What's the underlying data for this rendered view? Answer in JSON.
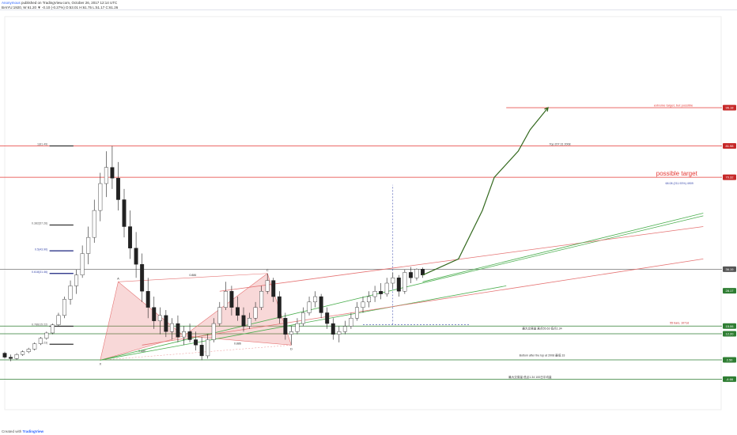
{
  "header": {
    "author": "Anonymous",
    "published": "published on TradingView.com, October 26, 2017 12:14 UTC",
    "symbol_line": "BAIYU:1920, W  61.20 ▼ -0.10 (-0.27%)  O:53.01  H:61.75  L:51.17  C:61.26"
  },
  "footer": {
    "created_with": "Created with",
    "brand": "TradingView"
  },
  "chart_data": {
    "type": "candlestick",
    "title": "",
    "xlabel": "",
    "ylabel": "",
    "ylim": [
      -16,
      130
    ],
    "price_scale_badges": [
      {
        "label": "96.18",
        "value": 96.18,
        "color": "#c62828"
      },
      {
        "label": "81.98",
        "value": 81.98,
        "color": "#c62828"
      },
      {
        "label": "70.32",
        "value": 70.32,
        "color": "#c62828"
      },
      {
        "label": "36.19",
        "value": 36.19,
        "color": "#555555"
      },
      {
        "label": "28.17",
        "value": 28.17,
        "color": "#2e7d32"
      },
      {
        "label": "15.06",
        "value": 15.06,
        "color": "#2e7d32"
      },
      {
        "label": "12.20",
        "value": 12.2,
        "color": "#2e7d32"
      },
      {
        "label": "2.50",
        "value": 2.5,
        "color": "#2e7d32"
      },
      {
        "label": "-4.66",
        "value": -4.66,
        "color": "#2e7d32"
      }
    ],
    "horizontal_levels": [
      {
        "value": 96.18,
        "label": "extreme target, but possible",
        "color": "#e53935"
      },
      {
        "value": 81.98,
        "label": "Top 207.31 2008",
        "color": "#e53935"
      },
      {
        "value": 70.32,
        "label": "possible target",
        "color": "#e53935"
      },
      {
        "value": 36.19,
        "label": "",
        "color": "#757575"
      },
      {
        "value": 15.06,
        "label": "",
        "color": "#2e7d32"
      },
      {
        "value": 12.2,
        "label": "",
        "color": "#2e7d32"
      },
      {
        "value": 2.5,
        "label": "Bottom after the top at 2008 最低 33",
        "color": "#2e7d32"
      },
      {
        "value": -4.66,
        "label": "最大交易量 低点1.34 100日平均量",
        "color": "#2e7d32"
      }
    ],
    "fib_levels": [
      {
        "label": "1(81.49)",
        "value": 81.98
      },
      {
        "label": "0.382(57.26)",
        "value": 52.6
      },
      {
        "label": "0.5(43.90)",
        "value": 43.0
      },
      {
        "label": "0.618(31.46)",
        "value": 34.6
      },
      {
        "label": "0.786(15.22)",
        "value": 15.0
      },
      {
        "label": "0(6.23)",
        "value": 8.3
      }
    ],
    "annotations": [
      {
        "text": "Top 207.31 2008",
        "x": 93,
        "y": 81.98
      },
      {
        "text": "68.08 (211.93%) 4909",
        "x": 113,
        "y": 67.5,
        "color": "#3949ab"
      },
      {
        "text": "55 bars, 1071d",
        "x": 113,
        "y": 15.6,
        "color": "#c62828"
      },
      {
        "text": "最大交易量 高点55.63 低点1.34",
        "x": 90,
        "y": 13.5
      },
      {
        "text": "Bottom after the top at 2008 最低 33",
        "x": 90,
        "y": 3.6
      }
    ],
    "pattern_points": [
      {
        "label": "X",
        "x": 16,
        "y": 2.4
      },
      {
        "label": "A",
        "x": 19,
        "y": 31.5
      },
      {
        "label": "B",
        "x": 30,
        "y": 11.4
      },
      {
        "label": "C",
        "x": 44,
        "y": 34.6
      },
      {
        "label": "D",
        "x": 48,
        "y": 8.0
      }
    ],
    "ratio_labels": [
      "0.886",
      "0.886",
      "0.886"
    ],
    "candles": [
      [
        0,
        5,
        5.5,
        3,
        3.5
      ],
      [
        1,
        3.5,
        4.5,
        2,
        3
      ],
      [
        2,
        3,
        5,
        2.5,
        4.5
      ],
      [
        3,
        4.5,
        6,
        4,
        5.5
      ],
      [
        4,
        5.5,
        7,
        5,
        6.5
      ],
      [
        5,
        6.5,
        9,
        6,
        8.5
      ],
      [
        6,
        8.5,
        11,
        8,
        10.5
      ],
      [
        7,
        10.5,
        13,
        10,
        12.5
      ],
      [
        8,
        12.5,
        16,
        12,
        15.5
      ],
      [
        9,
        15.5,
        20,
        15,
        19
      ],
      [
        10,
        19,
        26,
        18,
        25
      ],
      [
        11,
        25,
        32,
        23,
        30
      ],
      [
        12,
        30,
        36,
        27,
        34
      ],
      [
        13,
        34,
        45,
        33,
        42
      ],
      [
        14,
        42,
        52,
        38,
        48
      ],
      [
        15,
        48,
        62,
        46,
        58
      ],
      [
        16,
        58,
        72,
        54,
        68
      ],
      [
        17,
        68,
        80,
        63,
        74
      ],
      [
        18,
        74,
        81.98,
        66,
        70
      ],
      [
        19,
        70,
        76,
        58,
        62
      ],
      [
        20,
        62,
        66,
        48,
        52
      ],
      [
        21,
        52,
        58,
        40,
        44
      ],
      [
        22,
        44,
        50,
        33,
        38
      ],
      [
        23,
        38,
        42,
        24,
        28
      ],
      [
        24,
        28,
        33,
        18,
        22
      ],
      [
        25,
        22,
        26,
        14,
        17
      ],
      [
        26,
        17,
        22,
        12,
        19
      ],
      [
        27,
        19,
        21,
        11,
        13
      ],
      [
        28,
        13,
        18,
        10,
        16
      ],
      [
        29,
        16,
        19,
        9,
        11
      ],
      [
        30,
        11,
        15,
        8,
        13
      ],
      [
        31,
        13,
        16,
        9,
        10
      ],
      [
        32,
        10,
        13,
        6,
        8
      ],
      [
        33,
        8,
        11,
        2.4,
        4
      ],
      [
        34,
        4,
        12,
        3,
        10
      ],
      [
        35,
        10,
        18,
        9,
        16
      ],
      [
        36,
        16,
        24,
        15,
        22
      ],
      [
        37,
        22,
        31.5,
        21,
        28
      ],
      [
        38,
        28,
        30,
        19,
        22
      ],
      [
        39,
        22,
        26,
        17,
        19
      ],
      [
        40,
        19,
        22,
        13,
        15
      ],
      [
        41,
        15,
        20,
        14,
        18
      ],
      [
        42,
        18,
        24,
        17,
        22
      ],
      [
        43,
        22,
        30,
        21,
        28
      ],
      [
        44,
        28,
        34.6,
        27,
        32
      ],
      [
        45,
        32,
        33,
        24,
        26
      ],
      [
        46,
        26,
        28,
        16,
        18
      ],
      [
        47,
        18,
        20,
        10,
        12
      ],
      [
        48,
        12,
        15,
        8,
        13
      ],
      [
        49,
        13,
        18,
        12,
        16
      ],
      [
        50,
        16,
        22,
        15,
        20
      ],
      [
        51,
        20,
        26,
        19,
        24
      ],
      [
        52,
        24,
        28,
        22,
        26
      ],
      [
        53,
        26,
        27,
        18,
        20
      ],
      [
        54,
        20,
        22,
        14,
        16
      ],
      [
        55,
        16,
        18,
        10,
        12
      ],
      [
        56,
        12,
        15,
        9,
        13
      ],
      [
        57,
        13,
        17,
        12,
        15
      ],
      [
        58,
        15,
        20,
        14,
        18
      ],
      [
        59,
        18,
        24,
        17,
        22
      ],
      [
        60,
        22,
        26,
        20,
        24
      ],
      [
        61,
        24,
        28,
        22,
        26
      ],
      [
        62,
        26,
        30,
        24,
        28
      ],
      [
        63,
        28,
        31,
        25,
        27
      ],
      [
        64,
        27,
        33,
        26,
        31
      ],
      [
        65,
        31,
        35,
        29,
        33
      ],
      [
        66,
        33,
        34,
        26,
        28
      ],
      [
        67,
        28,
        36,
        27,
        35
      ],
      [
        68,
        35,
        37,
        31,
        33
      ],
      [
        69,
        33,
        36.5,
        32,
        36.19
      ],
      [
        70,
        36.19,
        36.8,
        33,
        34
      ]
    ],
    "candle_x_range": [
      0,
      70
    ],
    "trendlines": [
      {
        "from": [
          16,
          2.4
        ],
        "to": [
          117,
          56
        ],
        "color": "#4caf50"
      },
      {
        "from": [
          16,
          2.4
        ],
        "to": [
          84,
          30
        ],
        "color": "#4caf50"
      },
      {
        "from": [
          23,
          8
        ],
        "to": [
          117,
          40
        ],
        "color": "#e57373"
      },
      {
        "from": [
          36,
          28
        ],
        "to": [
          117,
          52
        ],
        "color": "#e57373"
      },
      {
        "from": [
          70,
          31.5
        ],
        "to": [
          117,
          57
        ],
        "color": "#4caf50"
      }
    ],
    "projection_path": [
      [
        70,
        34
      ],
      [
        76,
        40
      ],
      [
        80,
        58
      ],
      [
        82,
        70.32
      ],
      [
        86,
        80
      ],
      [
        88,
        88
      ],
      [
        91,
        96.18
      ]
    ],
    "measure": {
      "x": 65,
      "from": 15.6,
      "to": 67.5,
      "color": "#3949ab"
    }
  }
}
